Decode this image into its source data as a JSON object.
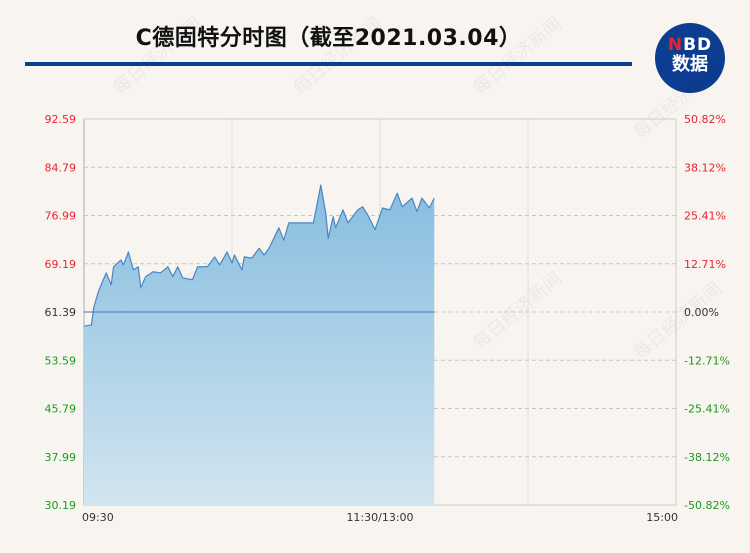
{
  "header": {
    "title": "C德固特分时图（截至2021.03.04）"
  },
  "logo": {
    "brand_n": "N",
    "brand_bd": "BD",
    "subtitle": "数据"
  },
  "watermark": "每日经济新闻",
  "colors": {
    "up": "#e8242e",
    "down": "#1a9a1a",
    "flat": "#333333",
    "line": "#4a86c4",
    "fill_top": "#86bde0",
    "fill_bottom": "#d2e5ef",
    "rule": "#0d3d91"
  },
  "chart_data": {
    "type": "area",
    "title": "C德固特分时图（截至2021.03.04）",
    "prev_close": 61.39,
    "ylim": [
      30.19,
      92.59
    ],
    "y_ticks_left": [
      "92.59",
      "84.79",
      "76.99",
      "69.19",
      "61.39",
      "53.59",
      "45.79",
      "37.99",
      "30.19"
    ],
    "y_ticks_right": [
      "50.82%",
      "38.12%",
      "25.41%",
      "12.71%",
      "0.00%",
      "-12.71%",
      "-25.41%",
      "-38.12%",
      "-50.82%"
    ],
    "x_ticks": [
      "09:30",
      "11:30/13:00",
      "15:00"
    ],
    "grid": true,
    "x": [
      "09:30",
      "09:33",
      "09:34",
      "09:36",
      "09:39",
      "09:41",
      "09:42",
      "09:45",
      "09:46",
      "09:48",
      "09:50",
      "09:52",
      "09:53",
      "09:55",
      "09:58",
      "10:01",
      "10:04",
      "10:06",
      "10:08",
      "10:10",
      "10:14",
      "10:16",
      "10:20",
      "10:23",
      "10:25",
      "10:28",
      "10:30",
      "10:31",
      "10:34",
      "10:35",
      "10:38",
      "10:41",
      "10:43",
      "10:45",
      "10:49",
      "10:51",
      "10:53",
      "11:03",
      "11:06",
      "11:08",
      "11:09",
      "11:11",
      "11:12",
      "11:15",
      "11:17",
      "11:21",
      "11:23",
      "11:25",
      "11:28",
      "13:01",
      "13:04",
      "13:07",
      "13:09",
      "13:13",
      "13:15",
      "13:17",
      "13:20",
      "13:22"
    ],
    "values": [
      59.1,
      59.3,
      62.2,
      64.9,
      67.7,
      65.8,
      68.7,
      69.8,
      69.0,
      71.1,
      68.2,
      68.7,
      65.3,
      67.1,
      67.9,
      67.7,
      68.7,
      67.1,
      68.7,
      66.9,
      66.6,
      68.7,
      68.7,
      70.3,
      69.0,
      71.1,
      69.3,
      70.6,
      68.2,
      70.3,
      70.1,
      71.7,
      70.6,
      71.7,
      75.0,
      73.0,
      75.8,
      75.8,
      81.9,
      77.4,
      73.3,
      76.8,
      75.0,
      77.9,
      75.8,
      77.9,
      78.4,
      77.1,
      74.7,
      78.2,
      77.9,
      80.6,
      78.4,
      79.8,
      77.6,
      79.8,
      78.2,
      79.8
    ]
  }
}
